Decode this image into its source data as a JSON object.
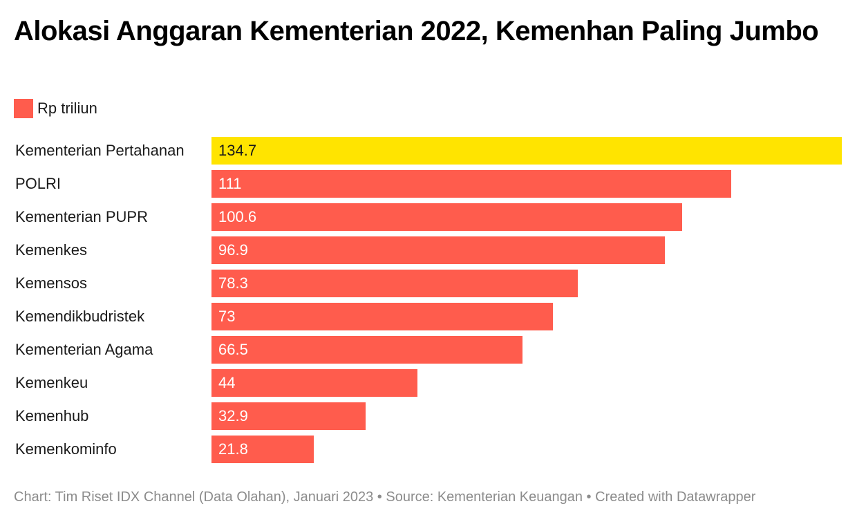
{
  "header": {
    "title": "Alokasi Anggaran Kementerian 2022, Kemenhan Paling Jumbo"
  },
  "legend": {
    "label": "Rp triliun",
    "color": "#ff5c4d"
  },
  "footer": {
    "text": "Chart: Tim Riset IDX Channel (Data Olahan), Januari 2023 • Source: Kementerian Keuangan • Created with Datawrapper"
  },
  "colors": {
    "bar_default": "#ff5c4d",
    "bar_highlight": "#ffe400",
    "value_on_default": "#ffffff",
    "value_on_highlight": "#1a1a1a"
  },
  "chart_data": {
    "type": "bar",
    "orientation": "horizontal",
    "title": "Alokasi Anggaran Kementerian 2022, Kemenhan Paling Jumbo",
    "xlabel": "",
    "ylabel": "",
    "xlim": [
      0,
      134.7
    ],
    "grid": false,
    "legend_placement": "top-left",
    "categories": [
      "Kementerian Pertahanan",
      "POLRI",
      "Kementerian PUPR",
      "Kemenkes",
      "Kemensos",
      "Kemendikbudristek",
      "Kementerian Agama",
      "Kemenkeu",
      "Kemenhub",
      "Kemenkominfo"
    ],
    "values": [
      134.7,
      111,
      100.6,
      96.9,
      78.3,
      73,
      66.5,
      44,
      32.9,
      21.8
    ],
    "value_labels": [
      "134.7",
      "111",
      "100.6",
      "96.9",
      "78.3",
      "73",
      "66.5",
      "44",
      "32.9",
      "21.8"
    ],
    "highlight_index": 0,
    "series": [
      {
        "name": "Rp triliun",
        "values": [
          134.7,
          111,
          100.6,
          96.9,
          78.3,
          73,
          66.5,
          44,
          32.9,
          21.8
        ]
      }
    ]
  }
}
